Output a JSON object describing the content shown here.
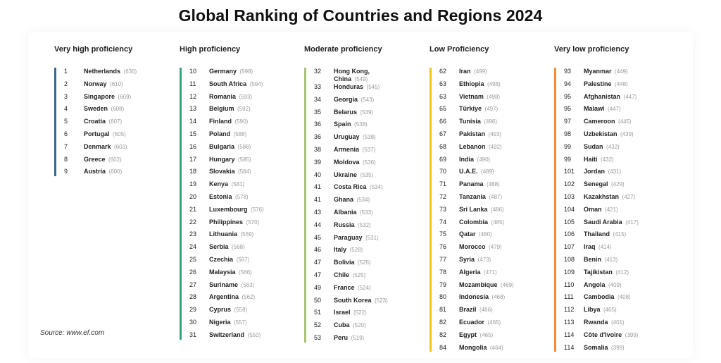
{
  "title": "Global Ranking of Countries and Regions 2024",
  "source": "Source: www.ef.com",
  "colors": {
    "very_high": "#2f6b8f",
    "high": "#3aa37a",
    "moderate": "#a9c27a",
    "low": "#f0c419",
    "very_low": "#f08a3c"
  },
  "columns": [
    {
      "title": "Very high proficiency",
      "color": "#2f6b8f",
      "entries": [
        {
          "rank": "1",
          "name": "Netherlands",
          "score": "(636)"
        },
        {
          "rank": "2",
          "name": "Norway",
          "score": "(610)"
        },
        {
          "rank": "3",
          "name": "Singapore",
          "score": "(609)"
        },
        {
          "rank": "4",
          "name": "Sweden",
          "score": "(608)"
        },
        {
          "rank": "5",
          "name": "Croatia",
          "score": "(607)"
        },
        {
          "rank": "6",
          "name": "Portugal",
          "score": "(605)"
        },
        {
          "rank": "7",
          "name": "Denmark",
          "score": "(603)"
        },
        {
          "rank": "8",
          "name": "Greece",
          "score": "(602)"
        },
        {
          "rank": "9",
          "name": "Austria",
          "score": "(600)"
        }
      ]
    },
    {
      "title": "High proficiency",
      "color": "#3aa37a",
      "entries": [
        {
          "rank": "10",
          "name": "Germany",
          "score": "(598)"
        },
        {
          "rank": "11",
          "name": "South Africa",
          "score": "(594)"
        },
        {
          "rank": "12",
          "name": "Romania",
          "score": "(593)"
        },
        {
          "rank": "13",
          "name": "Belgium",
          "score": "(592)"
        },
        {
          "rank": "14",
          "name": "Finland",
          "score": "(590)"
        },
        {
          "rank": "15",
          "name": "Poland",
          "score": "(588)"
        },
        {
          "rank": "16",
          "name": "Bulgaria",
          "score": "(586)"
        },
        {
          "rank": "17",
          "name": "Hungary",
          "score": "(585)"
        },
        {
          "rank": "18",
          "name": "Slovakia",
          "score": "(584)"
        },
        {
          "rank": "19",
          "name": "Kenya",
          "score": "(581)"
        },
        {
          "rank": "20",
          "name": "Estonia",
          "score": "(578)"
        },
        {
          "rank": "21",
          "name": "Luxembourg",
          "score": "(576)"
        },
        {
          "rank": "22",
          "name": "Philippines",
          "score": "(570)"
        },
        {
          "rank": "23",
          "name": "Lithuania",
          "score": "(569)"
        },
        {
          "rank": "24",
          "name": "Serbia",
          "score": "(568)"
        },
        {
          "rank": "25",
          "name": "Czechia",
          "score": "(567)"
        },
        {
          "rank": "26",
          "name": "Malaysia",
          "score": "(566)"
        },
        {
          "rank": "27",
          "name": "Suriname",
          "score": "(563)"
        },
        {
          "rank": "28",
          "name": "Argentina",
          "score": "(562)"
        },
        {
          "rank": "29",
          "name": "Cyprus",
          "score": "(558)"
        },
        {
          "rank": "30",
          "name": "Nigeria",
          "score": "(557)"
        },
        {
          "rank": "31",
          "name": "Switzerland",
          "score": "(550)"
        }
      ]
    },
    {
      "title": "Moderate proficiency",
      "color": "#a9c27a",
      "entries": [
        {
          "rank": "32",
          "name": "Hong Kong, China",
          "score": "(549)",
          "wrap": true
        },
        {
          "rank": "33",
          "name": "Honduras",
          "score": "(545)"
        },
        {
          "rank": "34",
          "name": "Georgia",
          "score": "(543)"
        },
        {
          "rank": "35",
          "name": "Belarus",
          "score": "(539)"
        },
        {
          "rank": "36",
          "name": "Spain",
          "score": "(538)"
        },
        {
          "rank": "36",
          "name": "Uruguay",
          "score": "(538)"
        },
        {
          "rank": "38",
          "name": "Armenia",
          "score": "(537)"
        },
        {
          "rank": "39",
          "name": "Moldova",
          "score": "(536)"
        },
        {
          "rank": "40",
          "name": "Ukraine",
          "score": "(535)"
        },
        {
          "rank": "41",
          "name": "Costa Rica",
          "score": "(534)"
        },
        {
          "rank": "41",
          "name": "Ghana",
          "score": "(534)"
        },
        {
          "rank": "43",
          "name": "Albania",
          "score": "(533)"
        },
        {
          "rank": "44",
          "name": "Russia",
          "score": "(532)"
        },
        {
          "rank": "45",
          "name": "Paraguay",
          "score": "(531)"
        },
        {
          "rank": "46",
          "name": "Italy",
          "score": "(528)"
        },
        {
          "rank": "47",
          "name": "Bolivia",
          "score": "(525)"
        },
        {
          "rank": "47",
          "name": "Chile",
          "score": "(525)"
        },
        {
          "rank": "49",
          "name": "France",
          "score": "(524)"
        },
        {
          "rank": "50",
          "name": "South Korea",
          "score": "(523)"
        },
        {
          "rank": "51",
          "name": "Israel",
          "score": "(522)"
        },
        {
          "rank": "52",
          "name": "Cuba",
          "score": "(520)"
        },
        {
          "rank": "53",
          "name": "Peru",
          "score": "(519)"
        }
      ]
    },
    {
      "title": "Low Proficiency",
      "color": "#f0c419",
      "entries": [
        {
          "rank": "62",
          "name": "Iran",
          "score": "(499)"
        },
        {
          "rank": "63",
          "name": "Ethiopia",
          "score": "(498)"
        },
        {
          "rank": "63",
          "name": "Vietnam",
          "score": "(498)"
        },
        {
          "rank": "65",
          "name": "Türkiye",
          "score": "(497)"
        },
        {
          "rank": "66",
          "name": "Tunisia",
          "score": "(496)"
        },
        {
          "rank": "67",
          "name": "Pakistan",
          "score": "(493)"
        },
        {
          "rank": "68",
          "name": "Lebanon",
          "score": "(492)"
        },
        {
          "rank": "69",
          "name": "India",
          "score": "(490)"
        },
        {
          "rank": "70",
          "name": "U.A.E.",
          "score": "(489)"
        },
        {
          "rank": "71",
          "name": "Panama",
          "score": "(488)"
        },
        {
          "rank": "72",
          "name": "Tanzania",
          "score": "(487)"
        },
        {
          "rank": "73",
          "name": "Sri Lanka",
          "score": "(486)"
        },
        {
          "rank": "74",
          "name": "Colombia",
          "score": "(485)"
        },
        {
          "rank": "75",
          "name": "Qatar",
          "score": "(480)"
        },
        {
          "rank": "76",
          "name": "Morocco",
          "score": "(479)"
        },
        {
          "rank": "77",
          "name": "Syria",
          "score": "(473)"
        },
        {
          "rank": "78",
          "name": "Algeria",
          "score": "(471)"
        },
        {
          "rank": "79",
          "name": "Mozambique",
          "score": "(469)"
        },
        {
          "rank": "80",
          "name": "Indonesia",
          "score": "(468)"
        },
        {
          "rank": "81",
          "name": "Brazil",
          "score": "(466)"
        },
        {
          "rank": "82",
          "name": "Ecuador",
          "score": "(465)"
        },
        {
          "rank": "82",
          "name": "Egypt",
          "score": "(465)"
        },
        {
          "rank": "84",
          "name": "Mongolia",
          "score": "(464)"
        }
      ]
    },
    {
      "title": "Very low proficiency",
      "color": "#f08a3c",
      "entries": [
        {
          "rank": "93",
          "name": "Myanmar",
          "score": "(449)"
        },
        {
          "rank": "94",
          "name": "Palestine",
          "score": "(448)"
        },
        {
          "rank": "95",
          "name": "Afghanistan",
          "score": "(447)"
        },
        {
          "rank": "95",
          "name": "Malawi",
          "score": "(447)"
        },
        {
          "rank": "97",
          "name": "Cameroon",
          "score": "(445)"
        },
        {
          "rank": "98",
          "name": "Uzbekistan",
          "score": "(439)"
        },
        {
          "rank": "99",
          "name": "Sudan",
          "score": "(432)"
        },
        {
          "rank": "99",
          "name": "Haiti",
          "score": "(432)"
        },
        {
          "rank": "101",
          "name": "Jordan",
          "score": "(431)"
        },
        {
          "rank": "102",
          "name": "Senegal",
          "score": "(429)"
        },
        {
          "rank": "103",
          "name": "Kazakhstan",
          "score": "(427)"
        },
        {
          "rank": "104",
          "name": "Oman",
          "score": "(421)"
        },
        {
          "rank": "105",
          "name": "Saudi Arabia",
          "score": "(417)"
        },
        {
          "rank": "106",
          "name": "Thailand",
          "score": "(415)"
        },
        {
          "rank": "107",
          "name": "Iraq",
          "score": "(414)"
        },
        {
          "rank": "108",
          "name": "Benin",
          "score": "(413)"
        },
        {
          "rank": "109",
          "name": "Tajikistan",
          "score": "(412)"
        },
        {
          "rank": "110",
          "name": "Angola",
          "score": "(409)"
        },
        {
          "rank": "111",
          "name": "Cambodia",
          "score": "(408)"
        },
        {
          "rank": "112",
          "name": "Libya",
          "score": "(405)"
        },
        {
          "rank": "113",
          "name": "Rwanda",
          "score": "(401)"
        },
        {
          "rank": "114",
          "name": "Côte d'Ivoire",
          "score": "(399)"
        },
        {
          "rank": "114",
          "name": "Somalia",
          "score": "(399)"
        }
      ]
    }
  ]
}
